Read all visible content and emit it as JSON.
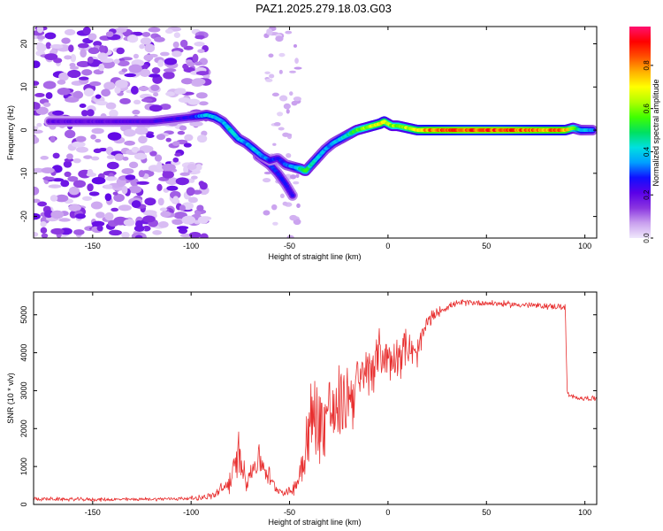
{
  "figure_title": "PAZ1.2025.279.18.03.G03",
  "chart_data": [
    {
      "type": "heatmap",
      "title": "PAZ1.2025.279.18.03.G03",
      "xlabel": "Height of straight line (km)",
      "ylabel": "Frequency (Hz)",
      "xlim": [
        -180,
        106
      ],
      "ylim": [
        -25,
        24
      ],
      "xticks": [
        -150,
        -100,
        -50,
        0,
        50,
        100
      ],
      "yticks": [
        -20,
        -10,
        0,
        10,
        20
      ],
      "colorbar": {
        "label": "Normalized spectral amplitude",
        "range": [
          0,
          0.98
        ],
        "ticks": [
          0.0,
          0.2,
          0.4,
          0.6,
          0.8
        ],
        "colors": [
          "#f0e8fc",
          "#c9a0ee",
          "#8a35e0",
          "#5a00e8",
          "#1010ff",
          "#00a0ff",
          "#00e0e0",
          "#00e060",
          "#40ff00",
          "#b0ff00",
          "#ffff00",
          "#ffb000",
          "#ff5000",
          "#ff0000",
          "#ff1070"
        ]
      },
      "ridge": {
        "x": [
          -172,
          -160,
          -140,
          -120,
          -100,
          -92,
          -88,
          -84,
          -80,
          -76,
          -72,
          -68,
          -64,
          -60,
          -56,
          -52,
          -48,
          -44,
          -42,
          -40,
          -36,
          -32,
          -28,
          -24,
          -20,
          -16,
          -12,
          -8,
          -4,
          -2,
          0,
          2,
          5,
          10,
          15,
          20,
          40,
          60,
          80,
          90,
          94,
          98,
          104
        ],
        "y": [
          2,
          2,
          2,
          2,
          3,
          3.5,
          3,
          2,
          0,
          -2,
          -3,
          -4.5,
          -6,
          -7,
          -6.5,
          -8,
          -8.5,
          -9,
          -9.5,
          -8.5,
          -6.5,
          -4.5,
          -3,
          -2,
          -1,
          0,
          0.5,
          1,
          1.5,
          2,
          1.5,
          1,
          1,
          0.5,
          0,
          0,
          0,
          0,
          0,
          0,
          0.5,
          0,
          0
        ],
        "amplitude": [
          0.2,
          0.2,
          0.2,
          0.22,
          0.25,
          0.4,
          0.4,
          0.35,
          0.45,
          0.4,
          0.35,
          0.4,
          0.35,
          0.3,
          0.25,
          0.3,
          0.35,
          0.5,
          0.55,
          0.45,
          0.4,
          0.35,
          0.35,
          0.4,
          0.45,
          0.55,
          0.6,
          0.65,
          0.7,
          0.7,
          0.65,
          0.6,
          0.6,
          0.65,
          0.7,
          0.8,
          0.85,
          0.85,
          0.8,
          0.8,
          0.6,
          0.4,
          0.35
        ]
      },
      "secondary_branch": {
        "x": [
          -66,
          -60,
          -56,
          -52,
          -48
        ],
        "y": [
          -6,
          -8,
          -10,
          -12.5,
          -15.5
        ],
        "amplitude": [
          0.3,
          0.3,
          0.28,
          0.26,
          0.24
        ]
      },
      "noise_region": {
        "x_range": [
          -180,
          -92
        ],
        "y_range": [
          -25,
          24
        ],
        "amplitude_range": [
          0.02,
          0.2
        ]
      },
      "sparse_noise_region": {
        "x_range": [
          -62,
          -45
        ],
        "y_range": [
          -25,
          24
        ],
        "amplitude_range": [
          0.02,
          0.08
        ]
      }
    },
    {
      "type": "line",
      "title": "",
      "xlabel": "Height of straight line (km)",
      "ylabel": "SNR (10 * v/v)",
      "xlim": [
        -180,
        106
      ],
      "ylim": [
        0,
        5600
      ],
      "xticks": [
        -150,
        -100,
        -50,
        0,
        50,
        100
      ],
      "yticks": [
        0,
        1000,
        2000,
        3000,
        4000,
        5000
      ],
      "series": [
        {
          "name": "SNR",
          "color": "#e83030",
          "x": [
            -180,
            -170,
            -160,
            -150,
            -140,
            -130,
            -120,
            -110,
            -100,
            -92,
            -88,
            -84,
            -80,
            -78,
            -76,
            -74,
            -72,
            -70,
            -68,
            -66,
            -64,
            -62,
            -60,
            -58,
            -56,
            -54,
            -52,
            -50,
            -48,
            -46,
            -44,
            -42,
            -40,
            -38,
            -36,
            -34,
            -32,
            -30,
            -28,
            -26,
            -24,
            -22,
            -20,
            -18,
            -16,
            -14,
            -12,
            -10,
            -8,
            -6,
            -4,
            -2,
            0,
            2,
            4,
            6,
            8,
            10,
            12,
            14,
            16,
            18,
            20,
            22,
            24,
            26,
            28,
            30,
            32,
            34,
            36,
            38,
            40,
            45,
            50,
            55,
            60,
            65,
            70,
            75,
            80,
            85,
            90,
            91,
            92,
            95,
            100,
            106
          ],
          "values": [
            150,
            140,
            135,
            130,
            130,
            135,
            140,
            150,
            160,
            200,
            250,
            400,
            600,
            900,
            1400,
            1000,
            700,
            800,
            1000,
            1200,
            1100,
            900,
            700,
            500,
            400,
            350,
            300,
            350,
            400,
            600,
            1000,
            1500,
            2000,
            2200,
            2400,
            2100,
            2300,
            2600,
            2400,
            2200,
            2800,
            2600,
            3000,
            2900,
            3300,
            3100,
            3500,
            3400,
            3800,
            3600,
            4200,
            3800,
            4000,
            3700,
            4100,
            3900,
            4300,
            4000,
            4100,
            3800,
            4200,
            4500,
            4800,
            4900,
            5000,
            5100,
            5150,
            5200,
            5250,
            5280,
            5300,
            5320,
            5330,
            5320,
            5310,
            5300,
            5280,
            5270,
            5260,
            5240,
            5230,
            5220,
            5200,
            3000,
            2850,
            2820,
            2800,
            2790
          ],
          "noise_amplitude": [
            70,
            60,
            60,
            60,
            55,
            55,
            55,
            60,
            70,
            100,
            150,
            250,
            400,
            600,
            700,
            500,
            400,
            450,
            500,
            500,
            450,
            400,
            300,
            200,
            120,
            100,
            120,
            150,
            200,
            400,
            800,
            1200,
            1400,
            1500,
            1500,
            1400,
            1400,
            1400,
            1300,
            1200,
            1300,
            1200,
            1100,
            1100,
            1000,
            1000,
            900,
            900,
            900,
            800,
            900,
            800,
            800,
            700,
            700,
            700,
            700,
            600,
            600,
            600,
            500,
            400,
            300,
            250,
            200,
            150,
            120,
            110,
            100,
            100,
            100,
            100,
            100,
            100,
            100,
            100,
            100,
            100,
            100,
            100,
            100,
            100,
            100,
            100,
            90,
            80,
            80,
            80
          ]
        }
      ]
    }
  ]
}
